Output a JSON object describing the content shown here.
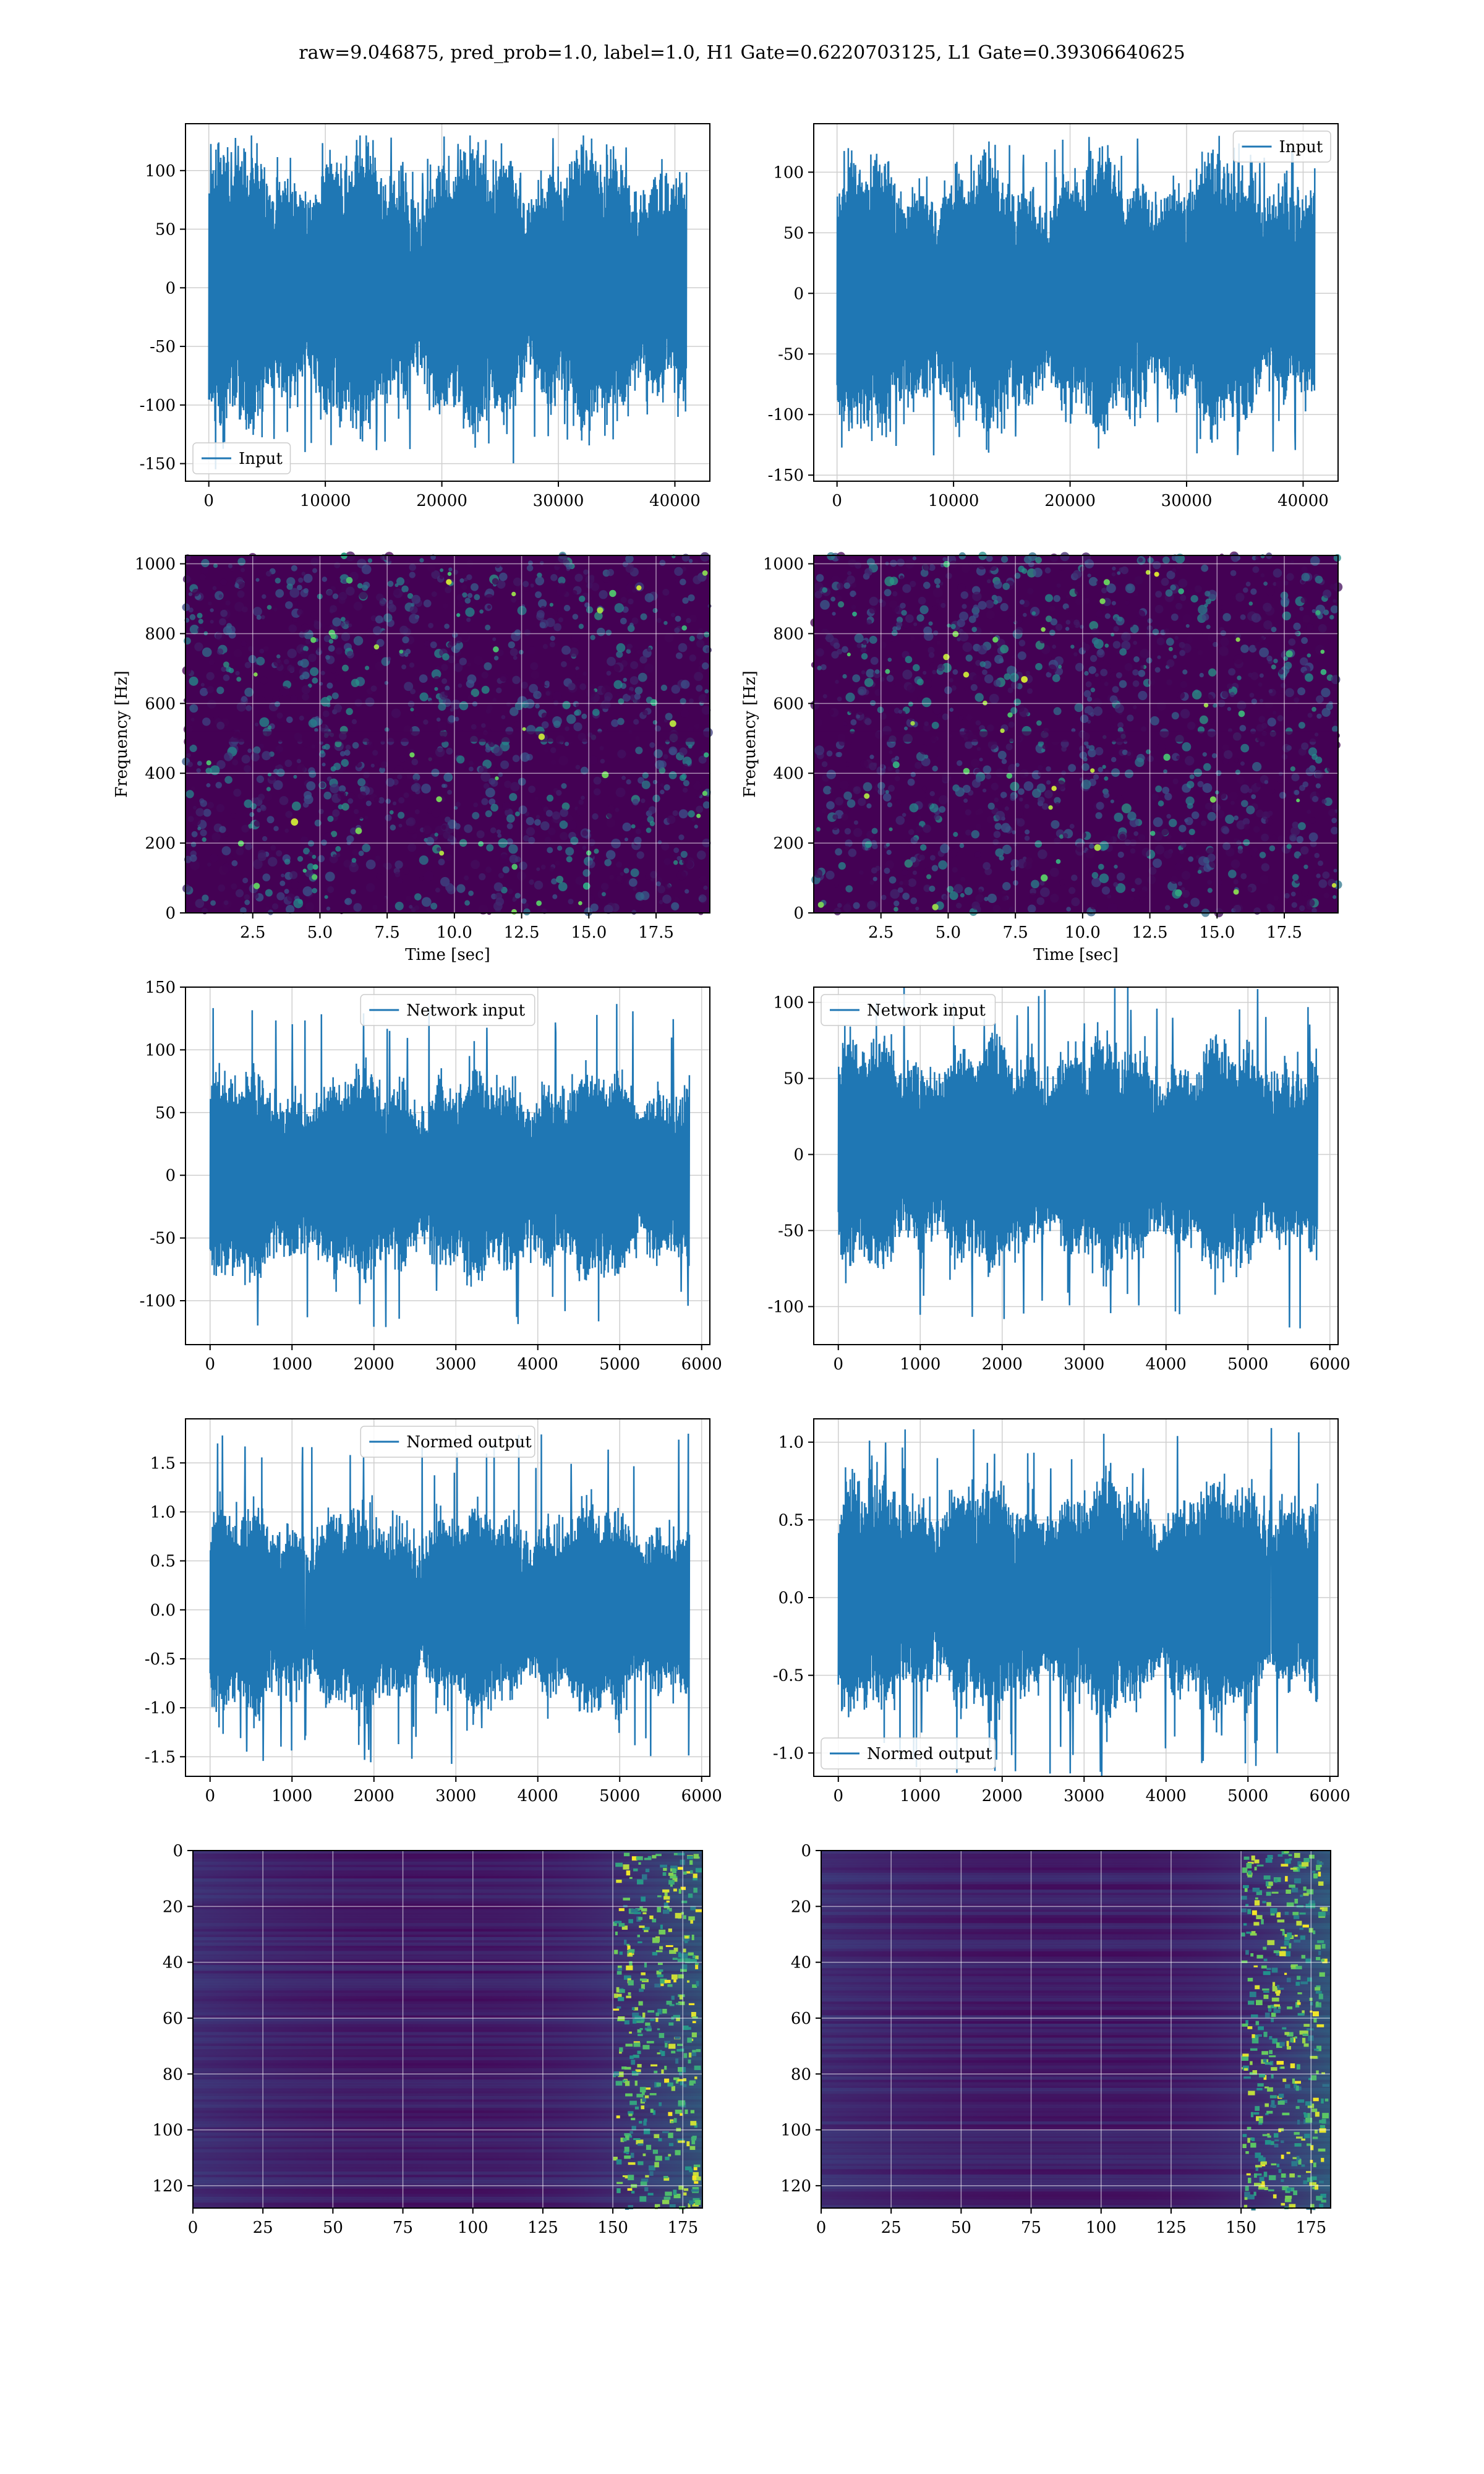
{
  "title": "raw=9.046875, pred_prob=1.0, label=1.0, H1 Gate=0.6220703125, L1 Gate=0.39306640625",
  "colors": {
    "line": "#1f77b4",
    "grid": "#cfcfcf",
    "heat_bg": "#440154",
    "viridis": [
      "#440154",
      "#3b528b",
      "#21918c",
      "#5ec962",
      "#fde725"
    ]
  },
  "chart_data": [
    {
      "id": "h1-input",
      "type": "line",
      "series": [
        {
          "name": "Input"
        }
      ],
      "xlim": [
        -2000,
        43000
      ],
      "ylim": [
        -165,
        140
      ],
      "xticks": [
        0,
        10000,
        20000,
        30000,
        40000
      ],
      "yticks": [
        -150,
        -100,
        -50,
        0,
        50,
        100
      ],
      "x_range": [
        0,
        41000
      ],
      "typical_amplitude": 80,
      "spike_max": 130,
      "spike_min": -155,
      "grid": true,
      "legend": "lower-left",
      "xlabel": "",
      "ylabel": ""
    },
    {
      "id": "l1-input",
      "type": "line",
      "series": [
        {
          "name": "Input"
        }
      ],
      "xlim": [
        -2000,
        43000
      ],
      "ylim": [
        -155,
        140
      ],
      "xticks": [
        0,
        10000,
        20000,
        30000,
        40000
      ],
      "yticks": [
        -150,
        -100,
        -50,
        0,
        50,
        100
      ],
      "x_range": [
        0,
        41000
      ],
      "typical_amplitude": 75,
      "spike_max": 130,
      "spike_min": -140,
      "grid": true,
      "legend": "upper-right",
      "xlabel": "",
      "ylabel": ""
    },
    {
      "id": "h1-spectrogram",
      "type": "heatmap",
      "xlim": [
        0,
        19.5
      ],
      "ylim": [
        0,
        1024
      ],
      "xticks": [
        2.5,
        5.0,
        7.5,
        10.0,
        12.5,
        15.0,
        17.5
      ],
      "yticks": [
        0,
        200,
        400,
        600,
        800,
        1000
      ],
      "xlabel": "Time [sec]",
      "ylabel": "Frequency [Hz]",
      "grid": true
    },
    {
      "id": "l1-spectrogram",
      "type": "heatmap",
      "xlim": [
        0,
        19.5
      ],
      "ylim": [
        0,
        1024
      ],
      "xticks": [
        2.5,
        5.0,
        7.5,
        10.0,
        12.5,
        15.0,
        17.5
      ],
      "yticks": [
        0,
        200,
        400,
        600,
        800,
        1000
      ],
      "xlabel": "Time [sec]",
      "ylabel": "Frequency [Hz]",
      "grid": true
    },
    {
      "id": "h1-network-input",
      "type": "line",
      "series": [
        {
          "name": "Network input"
        }
      ],
      "xlim": [
        -300,
        6100
      ],
      "ylim": [
        -135,
        150
      ],
      "xticks": [
        0,
        1000,
        2000,
        3000,
        4000,
        5000,
        6000
      ],
      "yticks": [
        -100,
        -50,
        0,
        50,
        100,
        150
      ],
      "x_range": [
        0,
        5850
      ],
      "typical_amplitude": 55,
      "spike_max": 138,
      "spike_min": -122,
      "grid": true,
      "legend": "upper-center",
      "xlabel": "",
      "ylabel": ""
    },
    {
      "id": "l1-network-input",
      "type": "line",
      "series": [
        {
          "name": "Network input"
        }
      ],
      "xlim": [
        -300,
        6100
      ],
      "ylim": [
        -125,
        110
      ],
      "xticks": [
        0,
        1000,
        2000,
        3000,
        4000,
        5000,
        6000
      ],
      "yticks": [
        -100,
        -50,
        0,
        50,
        100
      ],
      "x_range": [
        0,
        5850
      ],
      "typical_amplitude": 50,
      "spike_max": 110,
      "spike_min": -115,
      "grid": true,
      "legend": "upper-left",
      "xlabel": "",
      "ylabel": ""
    },
    {
      "id": "h1-normed-output",
      "type": "line",
      "series": [
        {
          "name": "Normed output"
        }
      ],
      "xlim": [
        -300,
        6100
      ],
      "ylim": [
        -1.7,
        1.95
      ],
      "xticks": [
        0,
        1000,
        2000,
        3000,
        4000,
        5000,
        6000
      ],
      "yticks": [
        -1.5,
        -1.0,
        -0.5,
        0.0,
        0.5,
        1.0,
        1.5
      ],
      "x_range": [
        0,
        5850
      ],
      "typical_amplitude": 0.7,
      "spike_max": 1.8,
      "spike_min": -1.58,
      "grid": true,
      "legend": "upper-center",
      "xlabel": "",
      "ylabel": ""
    },
    {
      "id": "l1-normed-output",
      "type": "line",
      "series": [
        {
          "name": "Normed output"
        }
      ],
      "xlim": [
        -300,
        6100
      ],
      "ylim": [
        -1.15,
        1.15
      ],
      "xticks": [
        0,
        1000,
        2000,
        3000,
        4000,
        5000,
        6000
      ],
      "yticks": [
        -1.0,
        -0.5,
        0.0,
        0.5,
        1.0
      ],
      "x_range": [
        0,
        5850
      ],
      "typical_amplitude": 0.5,
      "spike_max": 1.1,
      "spike_min": -1.15,
      "grid": true,
      "legend": "lower-left",
      "xlabel": "",
      "ylabel": ""
    },
    {
      "id": "h1-feature-map",
      "type": "heatmap",
      "xlim": [
        0,
        182
      ],
      "ylim": [
        128,
        0
      ],
      "xticks": [
        0,
        25,
        50,
        75,
        100,
        125,
        150,
        175
      ],
      "yticks": [
        0,
        20,
        40,
        60,
        80,
        100,
        120
      ],
      "xlabel": "",
      "ylabel": "",
      "grid": true
    },
    {
      "id": "l1-feature-map",
      "type": "heatmap",
      "xlim": [
        0,
        182
      ],
      "ylim": [
        128,
        0
      ],
      "xticks": [
        0,
        25,
        50,
        75,
        100,
        125,
        150,
        175
      ],
      "yticks": [
        0,
        20,
        40,
        60,
        80,
        100,
        120
      ],
      "xlabel": "",
      "ylabel": "",
      "grid": true
    }
  ]
}
